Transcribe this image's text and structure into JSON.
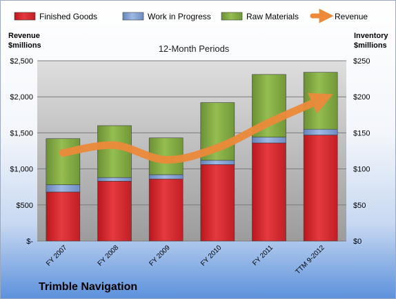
{
  "chart_data": {
    "type": "bar",
    "stacked": true,
    "title": "12-Month Periods",
    "company": "Trimble Navigation",
    "left_axis": {
      "label_line1": "Revenue",
      "label_line2": "$millions",
      "ylim": [
        0,
        2500
      ],
      "ticks": [
        0,
        500,
        1000,
        1500,
        2000,
        2500
      ],
      "tick_labels": [
        "$-",
        "$500",
        "$1,000",
        "$1,500",
        "$2,000",
        "$2,500"
      ]
    },
    "right_axis": {
      "label_line1": "Inventory",
      "label_line2": "$millions",
      "ylim": [
        0,
        250
      ],
      "ticks": [
        0,
        50,
        100,
        150,
        200,
        250
      ],
      "tick_labels": [
        "$0",
        "$50",
        "$100",
        "$150",
        "$200",
        "$250"
      ]
    },
    "categories": [
      "FY 2007",
      "FY 2008",
      "FY 2009",
      "FY 2010",
      "FY 2011",
      "TTM 9-2012"
    ],
    "series": [
      {
        "name": "Finished Goods",
        "axis": "right",
        "color": "#d42a2f",
        "values": [
          68,
          83,
          86,
          106,
          136,
          147
        ]
      },
      {
        "name": "Work in Progress",
        "axis": "right",
        "color": "#7f9fd3",
        "values": [
          10,
          5,
          6,
          6,
          8,
          8
        ]
      },
      {
        "name": "Raw Materials",
        "axis": "right",
        "color": "#7ea73f",
        "values": [
          64,
          72,
          51,
          80,
          87,
          79
        ]
      }
    ],
    "line": {
      "name": "Revenue",
      "axis": "left",
      "color": "#ec8a3a",
      "values": [
        1222,
        1329,
        1126,
        1294,
        1644,
        1960
      ]
    },
    "grid": true,
    "legend": "top"
  }
}
